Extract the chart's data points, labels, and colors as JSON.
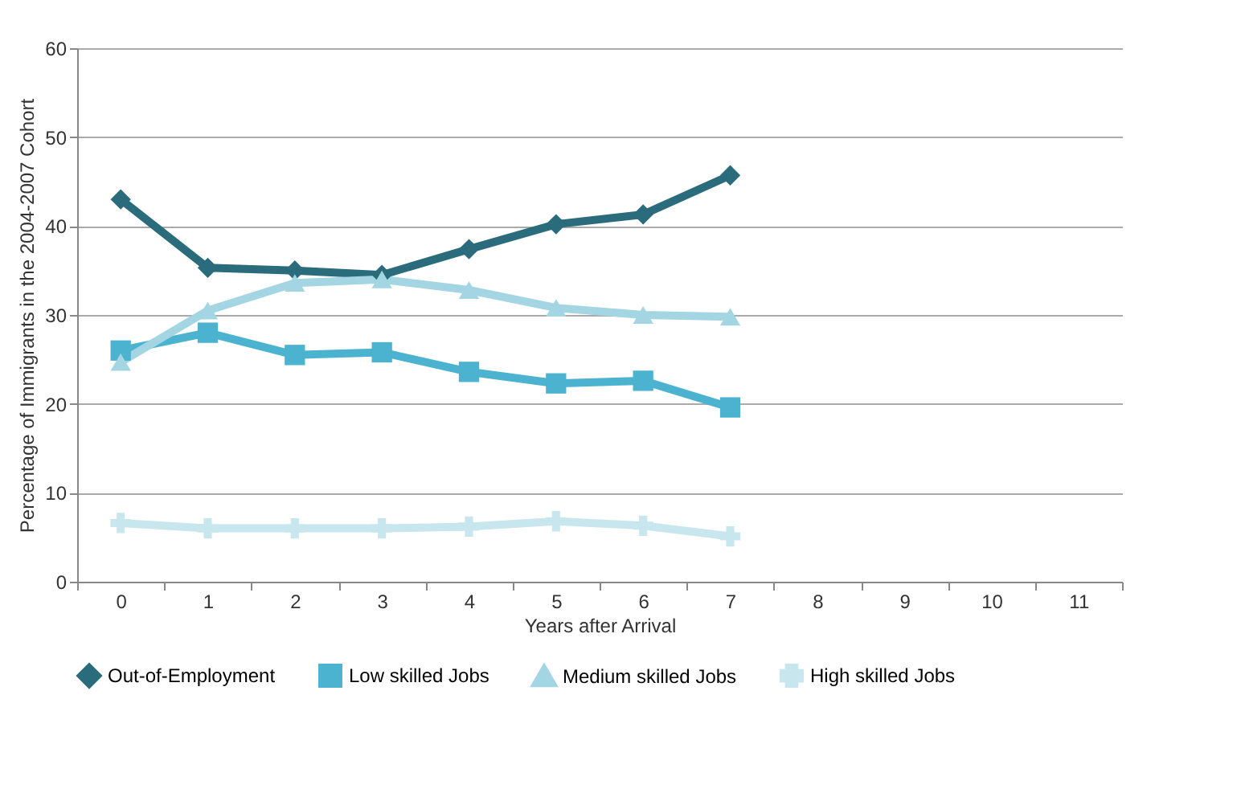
{
  "chart_data": {
    "type": "line",
    "xlabel": "Years after Arrival",
    "ylabel": "Percentage of Immigrants in the 2004-2007 Cohort",
    "categories": [
      "0",
      "1",
      "2",
      "3",
      "4",
      "5",
      "6",
      "7",
      "8",
      "9",
      "10",
      "11"
    ],
    "series": [
      {
        "name": "Out-of-Employment",
        "color": "#2a6b7c",
        "marker": "diamond",
        "values": [
          43,
          35.3,
          35,
          34.5,
          37.4,
          40.2,
          41.3,
          45.7,
          null,
          null,
          null,
          null
        ]
      },
      {
        "name": "Low skilled Jobs",
        "color": "#4bb3cf",
        "marker": "square",
        "values": [
          26,
          28,
          25.5,
          25.8,
          23.6,
          22.3,
          22.6,
          19.6,
          null,
          null,
          null,
          null
        ]
      },
      {
        "name": "Medium skilled Jobs",
        "color": "#a3d5e3",
        "marker": "triangle",
        "values": [
          24.7,
          30.5,
          33.6,
          34,
          32.8,
          30.8,
          30,
          29.8,
          null,
          null,
          null,
          null
        ]
      },
      {
        "name": "High skilled Jobs",
        "color": "#c7e6ee",
        "marker": "cross",
        "values": [
          6.6,
          6,
          6,
          6,
          6.2,
          6.8,
          6.3,
          5.1,
          null,
          null,
          null,
          null
        ]
      }
    ],
    "ylim": [
      0,
      60
    ],
    "yticks": [
      0,
      10,
      20,
      30,
      40,
      50,
      60
    ],
    "grid": "y",
    "legend": "bottom"
  }
}
